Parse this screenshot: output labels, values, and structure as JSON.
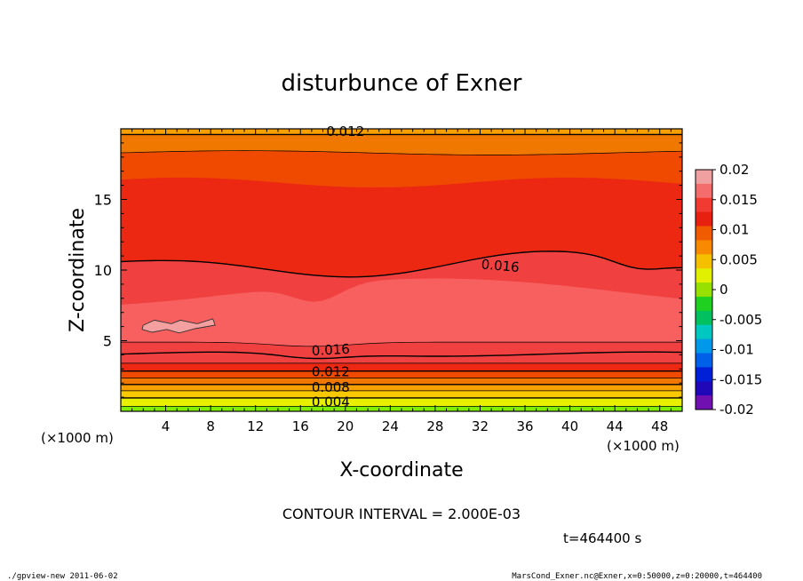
{
  "chart_data": {
    "type": "contour",
    "title": "disturbunce of Exner",
    "xlabel": "X-coordinate",
    "ylabel": "Z-coordinate",
    "x_unit_label": "(×1000 m)",
    "xlim": [
      0,
      50
    ],
    "ylim": [
      0,
      20
    ],
    "x_ticks": [
      4,
      8,
      12,
      16,
      20,
      24,
      28,
      32,
      36,
      40,
      44,
      48
    ],
    "y_ticks": [
      5,
      10,
      15
    ],
    "contour_interval_text": "CONTOUR INTERVAL = 2.000E-03",
    "time_text": "t=464400 s",
    "footer_left": "./gpview-new   2011-06-02",
    "footer_right": "MarsCond_Exner.nc@Exner,x=0:50000,z=0:20000,t=464400",
    "contour_labels": [
      "0.012",
      "0.016",
      "0.016",
      "0.012",
      "0.008",
      "0.004"
    ],
    "colorbar": {
      "tick_labels": [
        "0.02",
        "0.015",
        "0.01",
        "0.005",
        "0",
        "-0.005",
        "-0.01",
        "-0.015",
        "-0.02"
      ],
      "colors": [
        "#f0a0a0",
        "#f46c6c",
        "#f03a32",
        "#e82010",
        "#f05a00",
        "#f88a00",
        "#f4c000",
        "#e0f000",
        "#98e000",
        "#20d020",
        "#00c060",
        "#00c8c0",
        "#0098e8",
        "#0060e8",
        "#0020d8",
        "#2008b8",
        "#7010b0"
      ]
    },
    "bands": [
      {
        "level": 0.002,
        "color": "#80ee00"
      },
      {
        "level": 0.004,
        "color": "#e8f000"
      },
      {
        "level": 0.006,
        "color": "#f8c800"
      },
      {
        "level": 0.008,
        "color": "#f8a000"
      },
      {
        "level": 0.01,
        "color": "#f07800"
      },
      {
        "level": 0.012,
        "color": "#f04a00"
      },
      {
        "level": 0.014,
        "color": "#ec2812"
      },
      {
        "level": 0.016,
        "color": "#f04040"
      },
      {
        "level": 0.018,
        "color": "#f86060"
      },
      {
        "level": 0.02,
        "color": "#f4a0a0"
      }
    ]
  }
}
